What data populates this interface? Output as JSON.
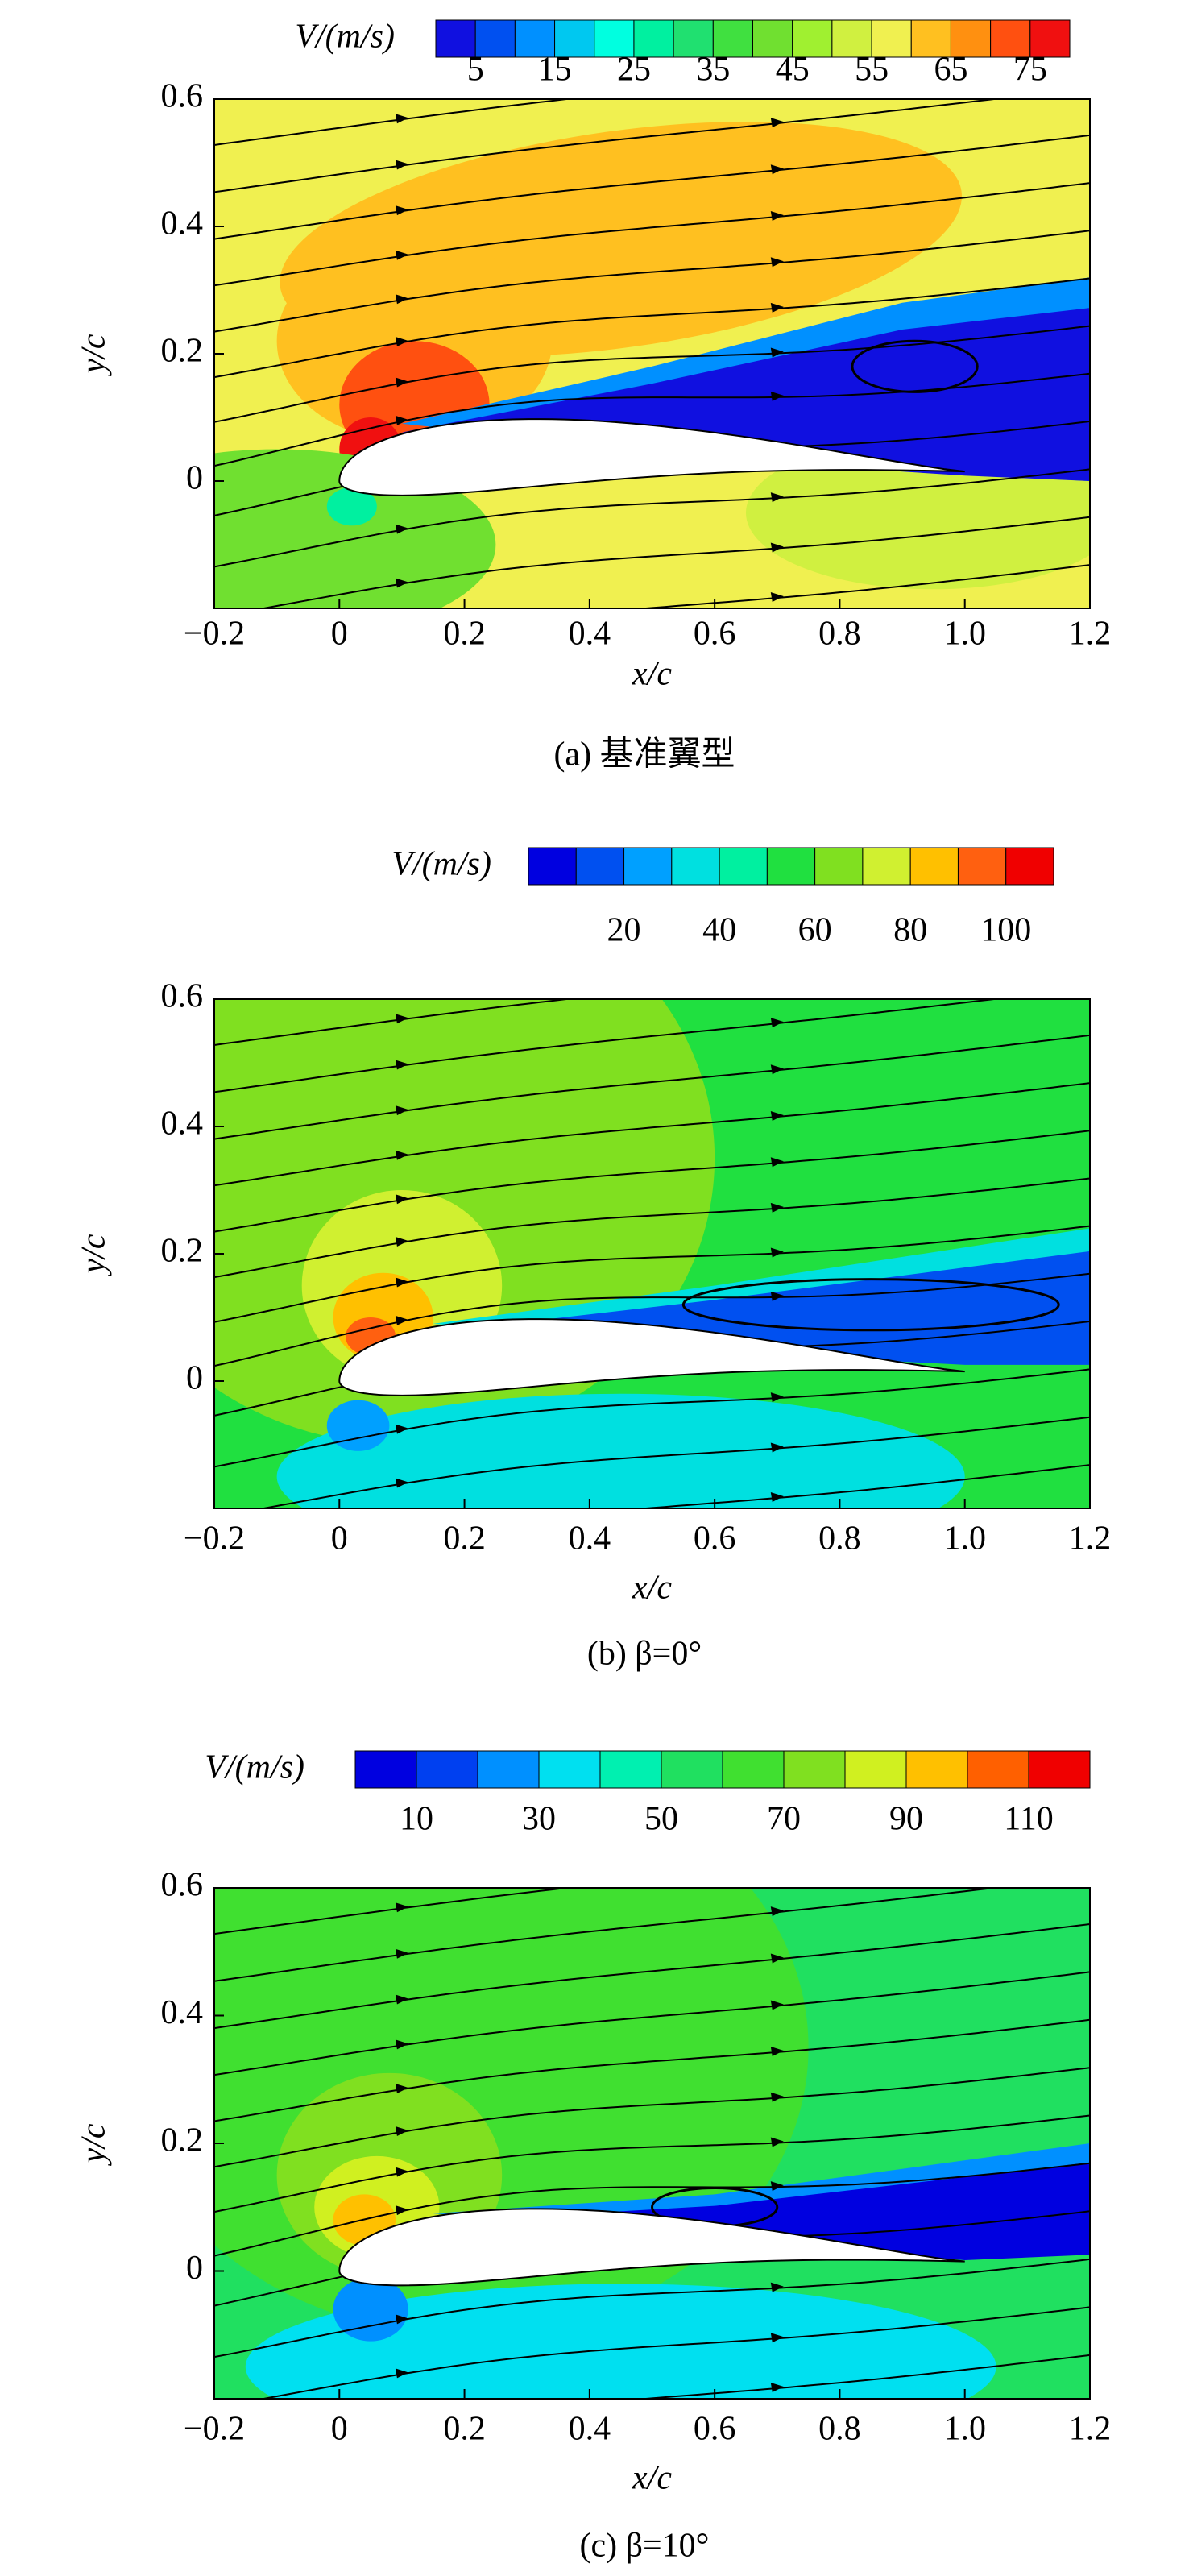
{
  "chart_data": [
    {
      "type": "contour",
      "caption": "(a) 基准翼型",
      "colorbar_label": "V/(m/s)",
      "colorbar_lim": [
        0,
        80
      ],
      "colorbar_ticks": [
        5,
        15,
        25,
        35,
        45,
        55,
        65,
        75
      ],
      "colorbar_colors": [
        "#1010e0",
        "#0050f0",
        "#0090ff",
        "#00c8f0",
        "#00ffe0",
        "#00f0a0",
        "#20e070",
        "#40e040",
        "#70e030",
        "#a0f030",
        "#d0f040",
        "#f0f050",
        "#ffc020",
        "#ff9010",
        "#ff5010",
        "#f01010"
      ],
      "xlabel": "x/c",
      "ylabel": "y/c",
      "xlim": [
        -0.2,
        1.2
      ],
      "ylim": [
        -0.2,
        0.6
      ],
      "xticks": [
        {
          "value": -0.2,
          "label": "−0.2"
        },
        0,
        0.2,
        0.4,
        0.6,
        0.8,
        {
          "value": 1,
          "label": "1.0"
        },
        1.2
      ],
      "yticks": [
        0,
        0.2,
        0.4,
        0.6
      ]
    },
    {
      "type": "contour",
      "caption": "(b)  β=0°",
      "colorbar_label": "V/(m/s)",
      "colorbar_lim": [
        0,
        110
      ],
      "colorbar_ticks": [
        20,
        40,
        60,
        80,
        100
      ],
      "colorbar_colors": [
        "#0000e0",
        "#0050f0",
        "#00a0ff",
        "#00e0e0",
        "#00f0a0",
        "#20e040",
        "#80e020",
        "#d0f030",
        "#ffc000",
        "#ff6010",
        "#f00000"
      ],
      "xlabel": "x/c",
      "ylabel": "y/c",
      "xlim": [
        -0.2,
        1.2
      ],
      "ylim": [
        -0.2,
        0.6
      ],
      "xticks": [
        {
          "value": -0.2,
          "label": "−0.2"
        },
        0,
        0.2,
        0.4,
        0.6,
        0.8,
        {
          "value": 1,
          "label": "1.0"
        },
        1.2
      ],
      "yticks": [
        0,
        0.2,
        0.4,
        0.6
      ]
    },
    {
      "type": "contour",
      "caption": "(c)  β=10°",
      "colorbar_label": "V/(m/s)",
      "colorbar_lim": [
        0,
        120
      ],
      "colorbar_ticks": [
        10,
        30,
        50,
        70,
        90,
        110
      ],
      "colorbar_colors": [
        "#0000e0",
        "#0040f0",
        "#0090ff",
        "#00e0f0",
        "#00f0b0",
        "#20e060",
        "#40e030",
        "#80e020",
        "#d0f020",
        "#ffc000",
        "#ff6000",
        "#f00000"
      ],
      "xlabel": "x/c",
      "ylabel": "y/c",
      "xlim": [
        -0.2,
        1.2
      ],
      "ylim": [
        -0.2,
        0.6
      ],
      "xticks": [
        {
          "value": -0.2,
          "label": "−0.2"
        },
        0,
        0.2,
        0.4,
        0.6,
        0.8,
        {
          "value": 1,
          "label": "1.0"
        },
        1.2
      ],
      "yticks": [
        0,
        0.2,
        0.4,
        0.6
      ]
    }
  ]
}
